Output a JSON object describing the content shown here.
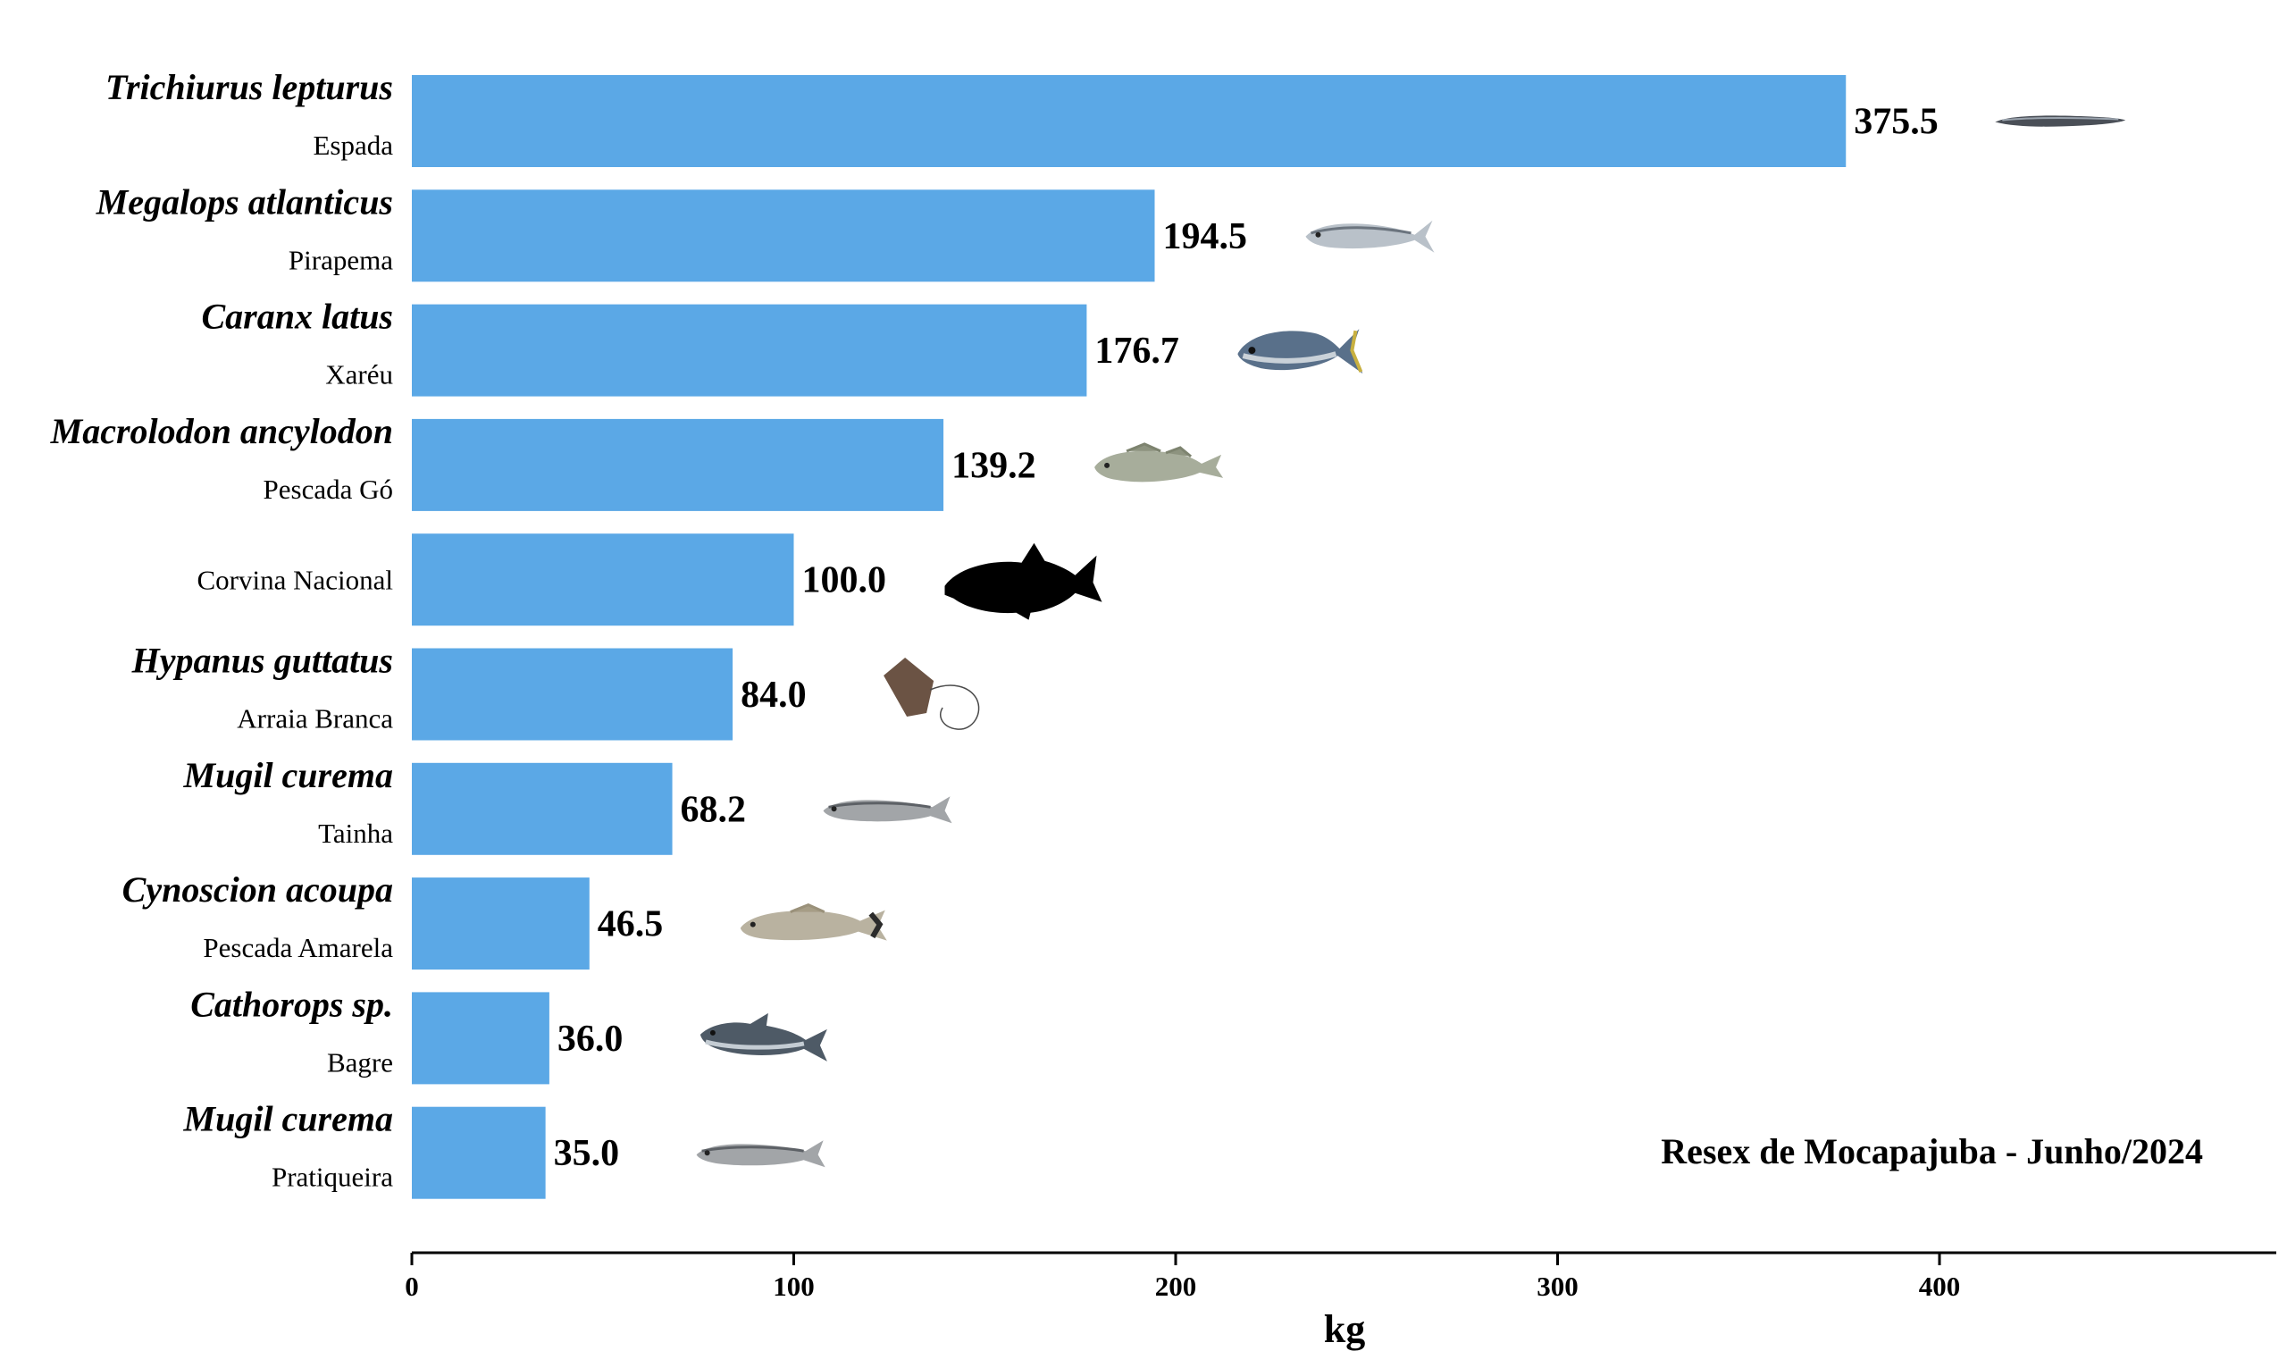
{
  "chart_data": {
    "type": "bar",
    "orientation": "horizontal",
    "xlabel": "kg",
    "xlim": [
      0,
      488
    ],
    "xticks": [
      "0",
      "100",
      "200",
      "300",
      "400"
    ],
    "annotation": "Resex de Mocapajuba - Junho/2024",
    "colors": {
      "bar": "#5ba8e6",
      "text": "#000000"
    },
    "categories": [
      {
        "scientific": "Trichiurus lepturus",
        "common": "Espada",
        "value": 375.5,
        "value_label": "375.5",
        "icon": "ribbonfish-icon"
      },
      {
        "scientific": "Megalops atlanticus",
        "common": "Pirapema",
        "value": 194.5,
        "value_label": "194.5",
        "icon": "tarpon-icon"
      },
      {
        "scientific": "Caranx latus",
        "common": "Xaréu",
        "value": 176.7,
        "value_label": "176.7",
        "icon": "jack-icon"
      },
      {
        "scientific": "Macrolodon ancylodon",
        "common": "Pescada Gó",
        "value": 139.2,
        "value_label": "139.2",
        "icon": "weakfish-icon"
      },
      {
        "scientific": "",
        "common": "Corvina Nacional",
        "value": 100.0,
        "value_label": "100.0",
        "icon": "fish-silhouette-icon"
      },
      {
        "scientific": "Hypanus guttatus",
        "common": "Arraia Branca",
        "value": 84.0,
        "value_label": "84.0",
        "icon": "stingray-icon"
      },
      {
        "scientific": "Mugil curema",
        "common": "Tainha",
        "value": 68.2,
        "value_label": "68.2",
        "icon": "mullet-icon"
      },
      {
        "scientific": "Cynoscion acoupa",
        "common": "Pescada Amarela",
        "value": 46.5,
        "value_label": "46.5",
        "icon": "acoupa-weakfish-icon"
      },
      {
        "scientific": "Cathorops sp.",
        "common": "Bagre",
        "value": 36.0,
        "value_label": "36.0",
        "icon": "catfish-icon"
      },
      {
        "scientific": "Mugil curema",
        "common": "Pratiqueira",
        "value": 35.0,
        "value_label": "35.0",
        "icon": "mullet-icon"
      }
    ]
  }
}
